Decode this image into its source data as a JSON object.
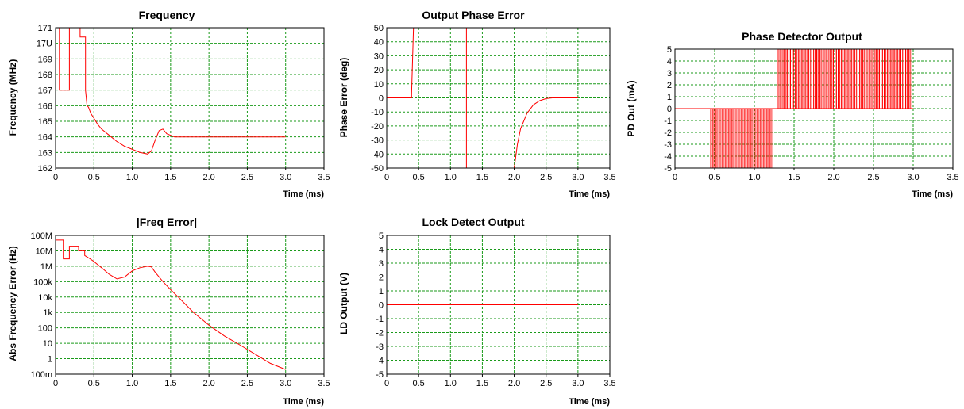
{
  "colors": {
    "trace": "#ff0000",
    "grid": "#1a9a1a",
    "axis": "#000000"
  },
  "chart_data": [
    {
      "type": "line",
      "title": "Frequency",
      "xlabel": "Time (ms)",
      "ylabel": "Frequency (MHz)",
      "xlim": [
        0,
        3.5
      ],
      "ylim": [
        162,
        171
      ],
      "xticks": [
        "0",
        "0.5",
        "1.0",
        "1.5",
        "2.0",
        "2.5",
        "3.0",
        "3.5"
      ],
      "yticks": [
        "162",
        "163",
        "164",
        "165",
        "166",
        "167",
        "168",
        "169",
        "17U",
        "171"
      ],
      "grid": true,
      "series": [
        {
          "x": [
            0,
            0.05,
            0.05,
            0.18,
            0.18,
            0.25,
            0.25,
            0.32,
            0.32,
            0.39,
            0.39,
            0.41,
            0.43,
            0.46,
            0.5,
            0.55,
            0.6,
            0.7,
            0.8,
            0.9,
            1.0,
            1.1,
            1.2,
            1.25,
            1.3,
            1.35,
            1.4,
            1.45,
            1.5,
            1.55,
            1.6,
            3.0
          ],
          "y": [
            171,
            171,
            167,
            167,
            171,
            171,
            171,
            171,
            170.4,
            170.4,
            167.0,
            166.0,
            165.9,
            165.5,
            165.2,
            164.8,
            164.5,
            164.1,
            163.7,
            163.4,
            163.2,
            163.0,
            162.9,
            163.1,
            163.8,
            164.4,
            164.5,
            164.2,
            164.1,
            164.0,
            164.0,
            164.0
          ]
        }
      ]
    },
    {
      "type": "line",
      "title": "Output Phase Error",
      "xlabel": "Time (ms)",
      "ylabel": "Phase Error (deg)",
      "xlim": [
        0,
        3.5
      ],
      "ylim": [
        -50,
        50
      ],
      "xticks": [
        "0",
        "0.5",
        "1.0",
        "1.5",
        "2.0",
        "2.5",
        "3.0",
        "3.5"
      ],
      "yticks": [
        "-50",
        "-40",
        "-30",
        "-20",
        "-10",
        "0",
        "10",
        "20",
        "30",
        "40",
        "50"
      ],
      "grid": true,
      "series": [
        {
          "x": [
            0,
            0.39,
            0.39,
            0.42,
            0.42
          ],
          "y": [
            0,
            0,
            3,
            50,
            50
          ]
        },
        {
          "x": [
            1.25,
            1.25
          ],
          "y": [
            50,
            -50
          ]
        },
        {
          "x": [
            2.0,
            2.05,
            2.1,
            2.2,
            2.3,
            2.4,
            2.5,
            2.6,
            2.7,
            3.0
          ],
          "y": [
            -50,
            -33,
            -22,
            -11,
            -5,
            -2,
            -0.5,
            0,
            0,
            0
          ]
        }
      ]
    },
    {
      "type": "line",
      "title": "Phase Detector Output",
      "xlabel": "Time (ms)",
      "ylabel": "PD Out (mA)",
      "xlim": [
        0,
        3.5
      ],
      "ylim": [
        -5,
        5
      ],
      "xticks": [
        "0",
        "0.5",
        "1.0",
        "1.5",
        "2.0",
        "2.5",
        "3.0",
        "3.5"
      ],
      "yticks": [
        "-5",
        "-4",
        "-3",
        "-2",
        "-1",
        "0",
        "1",
        "2",
        "3",
        "4",
        "5"
      ],
      "grid": true,
      "pulses": [
        {
          "start": 0.45,
          "end": 1.25,
          "count": 20,
          "level": -5
        },
        {
          "start": 1.3,
          "end": 3.0,
          "count": 44,
          "level": 5
        }
      ]
    },
    {
      "type": "line",
      "title": "|Freq Error|",
      "xlabel": "Time (ms)",
      "ylabel": "Abs Frequency Error (Hz)",
      "yscale": "log",
      "xlim": [
        0,
        3.5
      ],
      "ylim": [
        0.1,
        100000000
      ],
      "xticks": [
        "0",
        "0.5",
        "1.0",
        "1.5",
        "2.0",
        "2.5",
        "3.0",
        "3.5"
      ],
      "yticks": [
        "100m",
        "1",
        "10",
        "100",
        "1k",
        "10k",
        "100k",
        "1M",
        "10M",
        "100M"
      ],
      "grid": true,
      "series": [
        {
          "x": [
            0,
            0.1,
            0.1,
            0.18,
            0.18,
            0.3,
            0.3,
            0.38,
            0.38,
            0.45,
            0.5,
            0.6,
            0.7,
            0.8,
            0.9,
            1.0,
            1.1,
            1.2,
            1.25,
            1.3,
            1.4,
            1.5,
            1.6,
            1.8,
            2.0,
            2.2,
            2.4,
            2.6,
            2.8,
            3.0
          ],
          "y": [
            50000000,
            50000000,
            3000000,
            3000000,
            20000000,
            20000000,
            10000000,
            10000000,
            5000000,
            3000000,
            2000000,
            800000,
            300000,
            150000,
            200000,
            500000,
            800000,
            1000000,
            900000,
            400000,
            100000,
            30000,
            10000,
            1000,
            150,
            30,
            8,
            2,
            0.5,
            0.2
          ]
        }
      ]
    },
    {
      "type": "line",
      "title": "Lock Detect Output",
      "xlabel": "Time (ms)",
      "ylabel": "LD Output (V)",
      "xlim": [
        0,
        3.5
      ],
      "ylim": [
        -5,
        5
      ],
      "xticks": [
        "0",
        "0.5",
        "1.0",
        "1.5",
        "2.0",
        "2.5",
        "3.0",
        "3.5"
      ],
      "yticks": [
        "-5",
        "-4",
        "-3",
        "-2",
        "-1",
        "0",
        "1",
        "2",
        "3",
        "4",
        "5"
      ],
      "grid": true,
      "series": [
        {
          "x": [
            0,
            3.0
          ],
          "y": [
            0,
            0
          ]
        }
      ]
    }
  ]
}
